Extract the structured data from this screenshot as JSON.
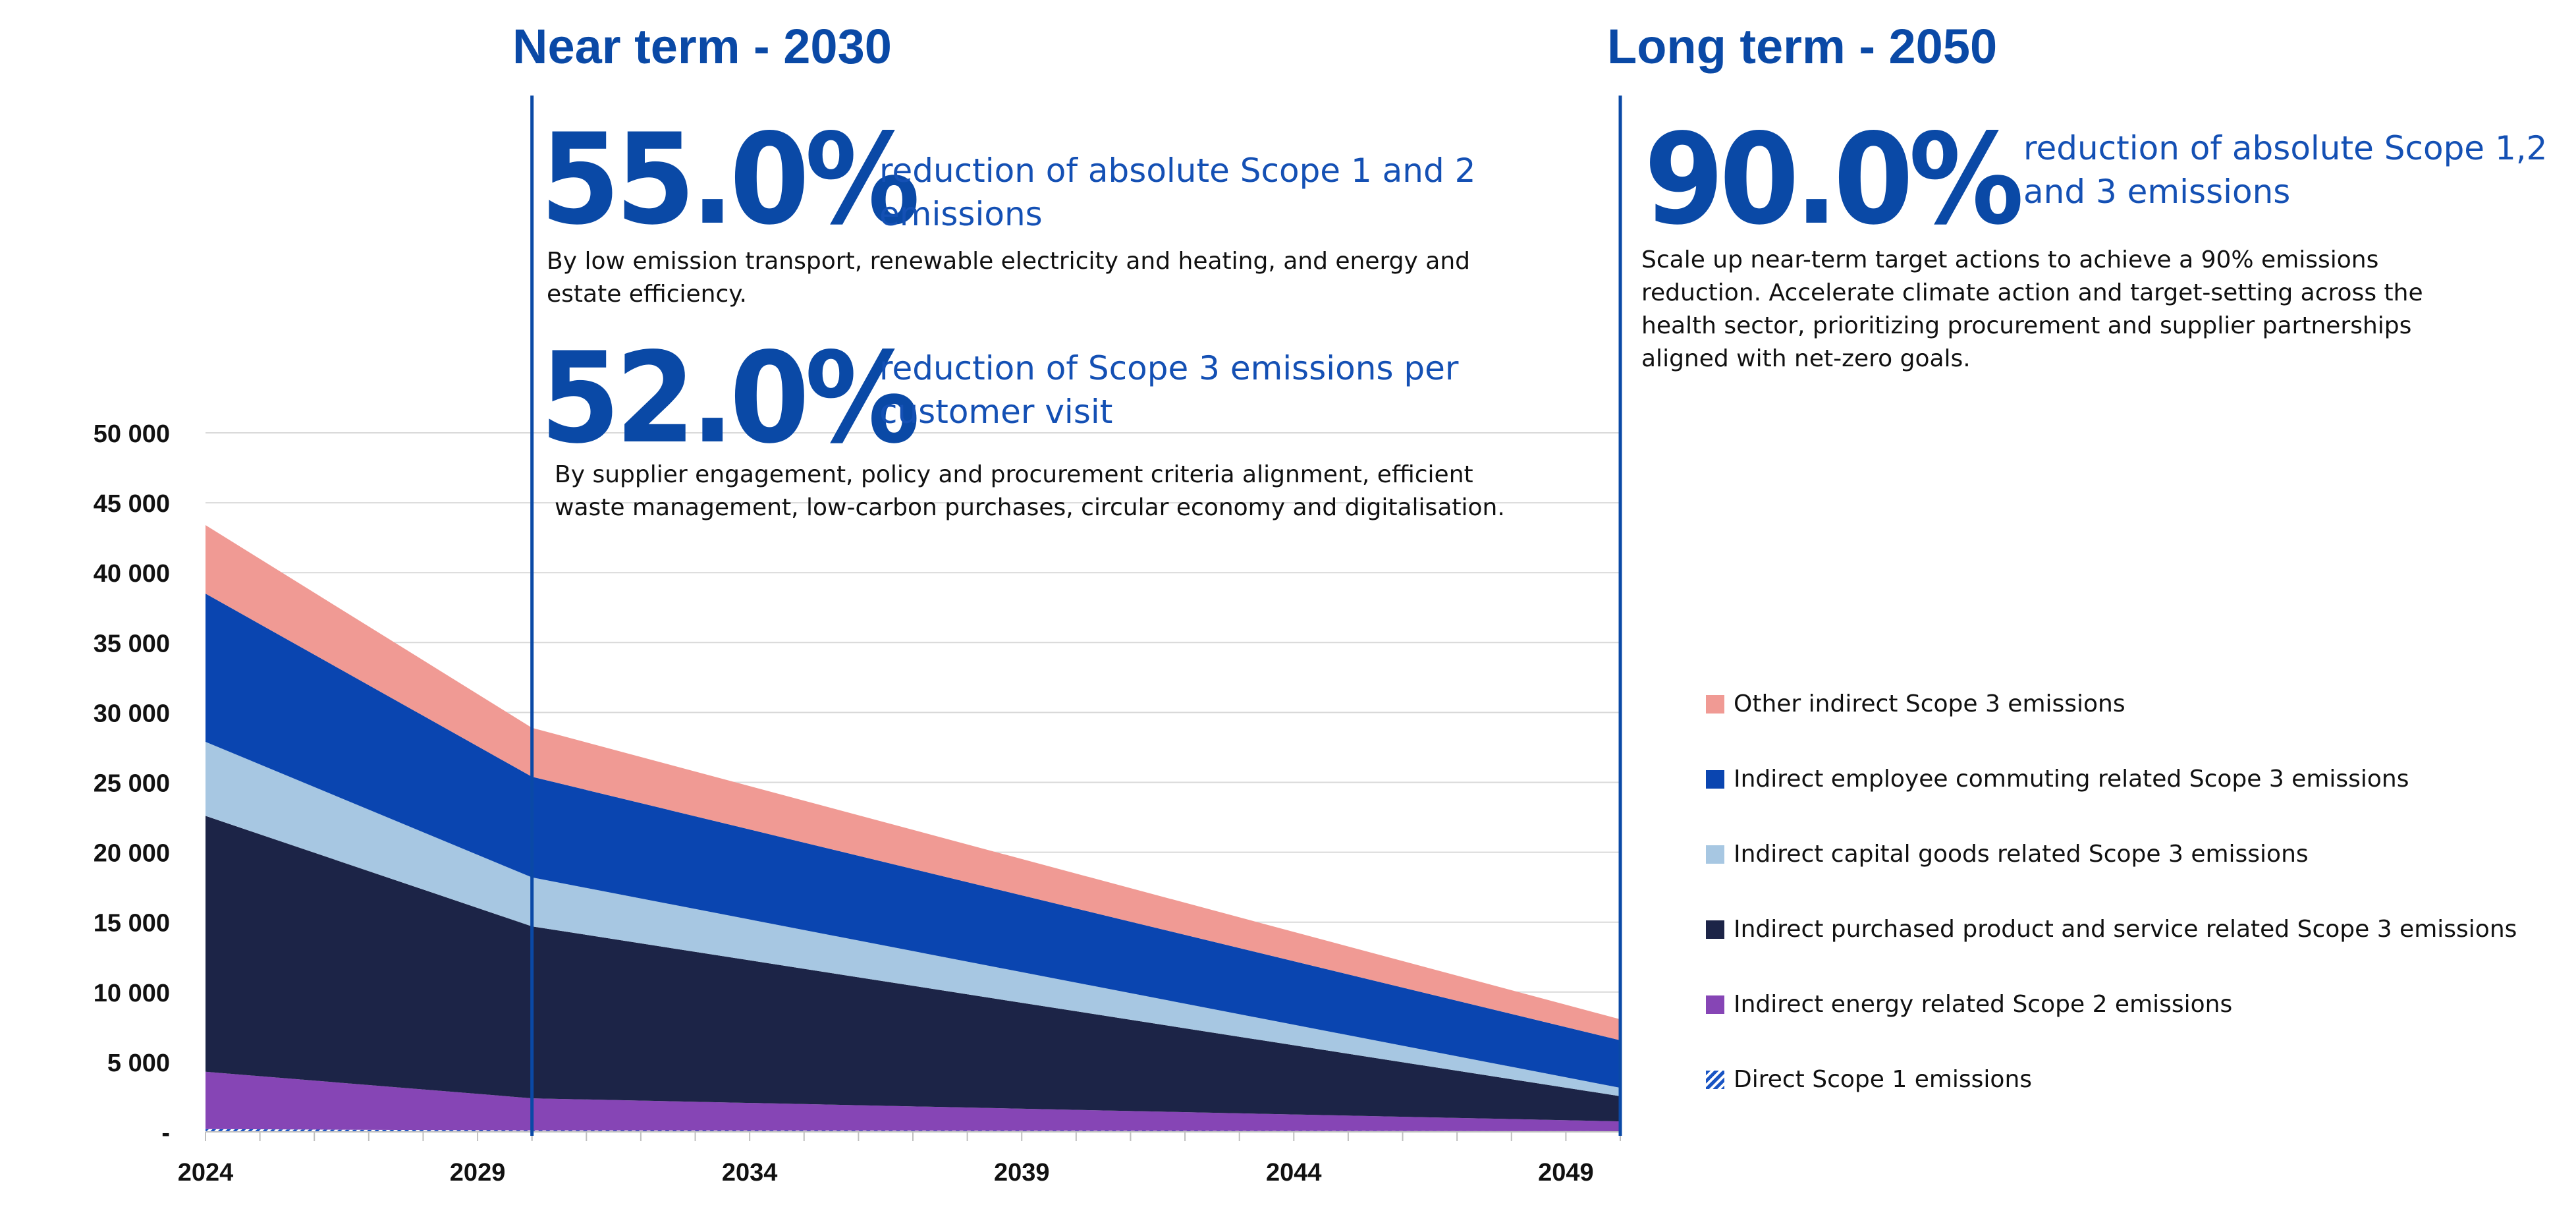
{
  "near_term": {
    "heading": "Near term -  2030",
    "target1": {
      "value": "55.0%",
      "label": "reduction of absolute Scope 1 and 2 emissions",
      "description": "By low emission transport, renewable electricity and heating, and energy and estate efficiency."
    },
    "target2": {
      "value": "52.0%",
      "label": "reduction of Scope 3 emissions per customer visit",
      "description": "By supplier engagement, policy and procurement criteria alignment, efficient waste management, low-carbon purchases, circular economy and digitalisation."
    }
  },
  "long_term": {
    "heading": "Long term - 2050",
    "target": {
      "value": "90.0%",
      "label": "reduction of absolute Scope 1,2 and 3 emissions",
      "description": "Scale up near-term target actions to achieve a 90% emissions reduction. Accelerate climate action and target-setting across the health sector, prioritizing procurement and supplier partnerships aligned with net-zero goals."
    }
  },
  "chart_data": {
    "type": "area",
    "stacked": true,
    "x": [
      2024,
      2030,
      2050
    ],
    "x_ticks": [
      "2024",
      "2029",
      "2034",
      "2039",
      "2044",
      "2049"
    ],
    "x_range": [
      2024,
      2050
    ],
    "y_range": [
      0,
      50000
    ],
    "y_ticks": [
      "-",
      "5 000",
      "10 000",
      "15 000",
      "20 000",
      "25 000",
      "30 000",
      "35 000",
      "40 000",
      "45 000",
      "50 000"
    ],
    "grid": true,
    "legend_position": "right",
    "markers": [
      2030,
      2050
    ],
    "series": [
      {
        "name": "Direct Scope 1 emissions",
        "color": "#1a55c4",
        "pattern": "hatch",
        "values": [
          200,
          100,
          50
        ]
      },
      {
        "name": "Indirect energy related Scope 2 emissions",
        "color": "#8645b5",
        "values": [
          4100,
          2300,
          700
        ]
      },
      {
        "name": "Indirect purchased product and service related Scope 3 emissions",
        "color": "#1c2447",
        "values": [
          18300,
          12300,
          1800
        ]
      },
      {
        "name": "Indirect capital goods related Scope 3 emissions",
        "color": "#a7c7e2",
        "values": [
          5300,
          3500,
          600
        ]
      },
      {
        "name": "Indirect employee commuting related Scope 3 emissions",
        "color": "#0a45b0",
        "values": [
          10600,
          7200,
          3400
        ]
      },
      {
        "name": "Other indirect Scope 3 emissions",
        "color": "#f09a94",
        "values": [
          4900,
          3500,
          1500
        ]
      }
    ]
  }
}
